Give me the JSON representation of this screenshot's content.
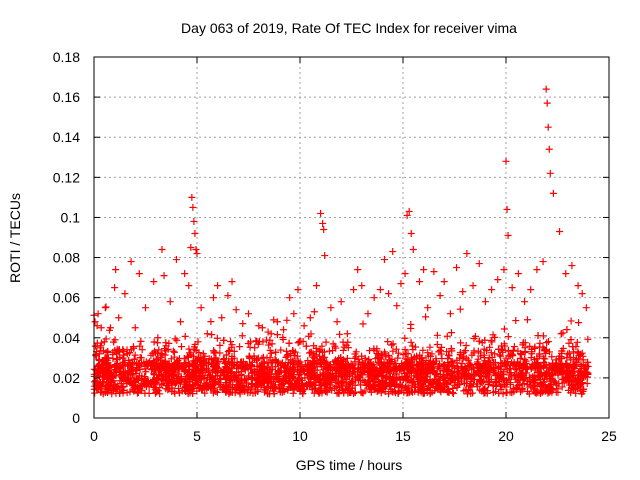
{
  "chart_data": {
    "type": "scatter",
    "title": "Day 063 of 2019, Rate Of TEC Index for receiver vima",
    "xlabel": "GPS time / hours",
    "ylabel": "ROTI / TECUs",
    "xlim": [
      0,
      25
    ],
    "ylim": [
      0,
      0.18
    ],
    "xticks": [
      0,
      5,
      10,
      15,
      20,
      25
    ],
    "xtick_labels": [
      "0",
      "5",
      "10",
      "15",
      "20",
      "25"
    ],
    "yticks": [
      0,
      0.02,
      0.04,
      0.06,
      0.08,
      0.1,
      0.12,
      0.14,
      0.16,
      0.18
    ],
    "ytick_labels": [
      "0",
      "0.02",
      "0.04",
      "0.06",
      "0.08",
      "0.1",
      "0.12",
      "0.14",
      "0.16",
      "0.18"
    ],
    "grid": true,
    "marker": "+",
    "color": "#ff0000",
    "series": [
      {
        "name": "ROTI",
        "x": [
          0.02,
          0.05,
          0.08,
          0.12,
          0.15,
          0.18,
          0.2,
          0.25,
          0.3,
          0.35,
          0.4,
          0.45,
          0.5,
          0.55,
          0.6,
          0.7,
          0.8,
          0.9,
          1.0,
          1.05,
          1.1,
          1.2,
          1.3,
          1.5,
          1.6,
          1.8,
          2.0,
          2.2,
          2.3,
          2.5,
          2.7,
          2.9,
          3.1,
          3.3,
          3.4,
          3.5,
          3.7,
          3.8,
          4.0,
          4.2,
          4.4,
          4.6,
          4.7,
          4.75,
          4.8,
          4.85,
          4.9,
          4.95,
          5.0,
          5.05,
          5.2,
          5.5,
          5.8,
          6.0,
          6.2,
          6.5,
          6.7,
          6.9,
          7.2,
          7.5,
          7.8,
          8.0,
          8.2,
          8.4,
          8.6,
          8.9,
          9.2,
          9.5,
          9.7,
          9.9,
          10.2,
          10.5,
          10.8,
          11.0,
          11.1,
          11.15,
          11.2,
          11.5,
          11.8,
          12.0,
          12.3,
          12.6,
          12.8,
          13.0,
          13.3,
          13.6,
          13.9,
          14.1,
          14.3,
          14.5,
          14.7,
          14.9,
          15.1,
          15.2,
          15.3,
          15.4,
          15.5,
          15.8,
          16.0,
          16.2,
          16.5,
          16.8,
          17.0,
          17.3,
          17.6,
          17.9,
          18.1,
          18.4,
          18.7,
          19.0,
          19.3,
          19.6,
          19.9,
          20.0,
          20.05,
          20.1,
          20.3,
          20.6,
          20.9,
          21.2,
          21.5,
          21.8,
          21.95,
          22.0,
          22.05,
          22.1,
          22.15,
          22.3,
          22.6,
          22.9,
          23.2,
          23.5,
          23.7,
          23.9
        ],
        "y": [
          0.018,
          0.048,
          0.024,
          0.031,
          0.046,
          0.015,
          0.052,
          0.021,
          0.035,
          0.045,
          0.028,
          0.012,
          0.038,
          0.055,
          0.022,
          0.03,
          0.045,
          0.02,
          0.065,
          0.074,
          0.032,
          0.05,
          0.025,
          0.062,
          0.034,
          0.078,
          0.045,
          0.072,
          0.03,
          0.055,
          0.028,
          0.068,
          0.04,
          0.084,
          0.071,
          0.036,
          0.058,
          0.026,
          0.079,
          0.048,
          0.072,
          0.066,
          0.085,
          0.11,
          0.105,
          0.098,
          0.092,
          0.084,
          0.082,
          0.038,
          0.055,
          0.042,
          0.06,
          0.066,
          0.05,
          0.061,
          0.068,
          0.054,
          0.041,
          0.052,
          0.035,
          0.046,
          0.038,
          0.03,
          0.042,
          0.048,
          0.044,
          0.06,
          0.052,
          0.064,
          0.046,
          0.05,
          0.066,
          0.102,
          0.097,
          0.094,
          0.081,
          0.055,
          0.048,
          0.058,
          0.042,
          0.064,
          0.074,
          0.066,
          0.052,
          0.06,
          0.064,
          0.079,
          0.062,
          0.083,
          0.056,
          0.067,
          0.072,
          0.101,
          0.103,
          0.092,
          0.084,
          0.068,
          0.074,
          0.055,
          0.073,
          0.061,
          0.068,
          0.052,
          0.075,
          0.063,
          0.082,
          0.066,
          0.077,
          0.058,
          0.064,
          0.069,
          0.074,
          0.128,
          0.104,
          0.091,
          0.065,
          0.072,
          0.058,
          0.064,
          0.074,
          0.078,
          0.164,
          0.157,
          0.145,
          0.134,
          0.122,
          0.112,
          0.093,
          0.072,
          0.076,
          0.066,
          0.062,
          0.055
        ]
      }
    ]
  }
}
